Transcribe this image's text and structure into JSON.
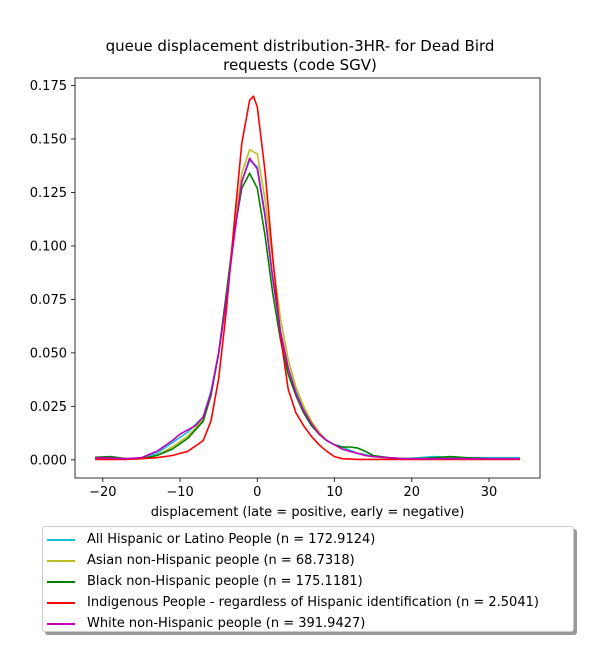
{
  "chart_data": {
    "type": "line",
    "title": "queue displacement distribution-3HR-  for Dead Bird",
    "subtitle": "requests (code SGV)",
    "xlabel": "displacement (late = positive, early = negative)",
    "ylabel": "",
    "xlim": [
      -23.6,
      36.6
    ],
    "ylim": [
      -0.0085,
      0.1785
    ],
    "xticks": [
      -20,
      -10,
      0,
      10,
      20,
      30
    ],
    "yticks": [
      0.0,
      0.025,
      0.05,
      0.075,
      0.1,
      0.125,
      0.15,
      0.175
    ],
    "xtick_labels": [
      "−20",
      "−10",
      "0",
      "10",
      "20",
      "30"
    ],
    "ytick_labels": [
      "0.000",
      "0.025",
      "0.050",
      "0.075",
      "0.100",
      "0.125",
      "0.150",
      "0.175"
    ],
    "legend_position": "below",
    "grid": false,
    "series": [
      {
        "name": "All Hispanic or Latino People (n = 172.9124)",
        "color": "#17becf",
        "points": [
          [
            -21,
            0.001
          ],
          [
            -19,
            0.0012
          ],
          [
            -17,
            0.0005
          ],
          [
            -15,
            0.0008
          ],
          [
            -13,
            0.003
          ],
          [
            -11,
            0.008
          ],
          [
            -9,
            0.013
          ],
          [
            -7,
            0.02
          ],
          [
            -6,
            0.032
          ],
          [
            -5,
            0.05
          ],
          [
            -4,
            0.075
          ],
          [
            -3,
            0.105
          ],
          [
            -2,
            0.13
          ],
          [
            -1,
            0.14
          ],
          [
            0,
            0.137
          ],
          [
            1,
            0.115
          ],
          [
            2,
            0.085
          ],
          [
            3,
            0.06
          ],
          [
            4,
            0.043
          ],
          [
            5,
            0.032
          ],
          [
            6,
            0.024
          ],
          [
            7,
            0.017
          ],
          [
            8,
            0.012
          ],
          [
            9,
            0.009
          ],
          [
            10,
            0.007
          ],
          [
            11,
            0.006
          ],
          [
            12,
            0.0045
          ],
          [
            13,
            0.003
          ],
          [
            14,
            0.0025
          ],
          [
            15,
            0.0015
          ],
          [
            17,
            0.001
          ],
          [
            19,
            0.0005
          ],
          [
            21,
            0.001
          ],
          [
            23,
            0.0015
          ],
          [
            25,
            0.001
          ],
          [
            27,
            0.001
          ],
          [
            30,
            0.001
          ],
          [
            34,
            0.001
          ]
        ]
      },
      {
        "name": "Asian non-Hispanic people (n = 68.7318)",
        "color": "#bcbd22",
        "points": [
          [
            -21,
            0.0005
          ],
          [
            -19,
            0.0005
          ],
          [
            -17,
            0.0003
          ],
          [
            -15,
            0.0005
          ],
          [
            -13,
            0.002
          ],
          [
            -11,
            0.006
          ],
          [
            -9,
            0.011
          ],
          [
            -7,
            0.019
          ],
          [
            -6,
            0.03
          ],
          [
            -5,
            0.05
          ],
          [
            -4,
            0.077
          ],
          [
            -3,
            0.108
          ],
          [
            -2,
            0.134
          ],
          [
            -1,
            0.145
          ],
          [
            0,
            0.143
          ],
          [
            1,
            0.122
          ],
          [
            2,
            0.093
          ],
          [
            3,
            0.066
          ],
          [
            4,
            0.047
          ],
          [
            5,
            0.034
          ],
          [
            6,
            0.025
          ],
          [
            7,
            0.018
          ],
          [
            8,
            0.013
          ],
          [
            9,
            0.009
          ],
          [
            10,
            0.007
          ],
          [
            11,
            0.005
          ],
          [
            12,
            0.004
          ],
          [
            13,
            0.003
          ],
          [
            14,
            0.002
          ],
          [
            15,
            0.0015
          ],
          [
            17,
            0.0008
          ],
          [
            19,
            0.0005
          ],
          [
            21,
            0.0005
          ],
          [
            23,
            0.0005
          ],
          [
            25,
            0.0005
          ],
          [
            30,
            0.0005
          ],
          [
            34,
            0.0005
          ]
        ]
      },
      {
        "name": "Black non-Hispanic people (n = 175.1181)",
        "color": "#008000",
        "points": [
          [
            -21,
            0.0012
          ],
          [
            -19,
            0.0015
          ],
          [
            -17,
            0.0005
          ],
          [
            -15,
            0.0005
          ],
          [
            -13,
            0.002
          ],
          [
            -11,
            0.005
          ],
          [
            -9,
            0.01
          ],
          [
            -7,
            0.018
          ],
          [
            -6,
            0.03
          ],
          [
            -5,
            0.05
          ],
          [
            -4,
            0.078
          ],
          [
            -3,
            0.106
          ],
          [
            -2,
            0.127
          ],
          [
            -1,
            0.134
          ],
          [
            0,
            0.127
          ],
          [
            1,
            0.105
          ],
          [
            2,
            0.078
          ],
          [
            3,
            0.056
          ],
          [
            4,
            0.04
          ],
          [
            5,
            0.03
          ],
          [
            6,
            0.022
          ],
          [
            7,
            0.016
          ],
          [
            8,
            0.012
          ],
          [
            9,
            0.009
          ],
          [
            10,
            0.007
          ],
          [
            11,
            0.006
          ],
          [
            12,
            0.006
          ],
          [
            13,
            0.0055
          ],
          [
            14,
            0.004
          ],
          [
            15,
            0.002
          ],
          [
            17,
            0.001
          ],
          [
            19,
            0.0005
          ],
          [
            21,
            0.0005
          ],
          [
            23,
            0.001
          ],
          [
            25,
            0.0015
          ],
          [
            27,
            0.001
          ],
          [
            30,
            0.0005
          ],
          [
            34,
            0.0003
          ]
        ]
      },
      {
        "name": "Indigenous People - regardless of Hispanic identification (n = 2.5041)",
        "color": "#ff0000",
        "points": [
          [
            -21,
            0.0002
          ],
          [
            -19,
            0.0002
          ],
          [
            -17,
            0.0002
          ],
          [
            -15,
            0.0005
          ],
          [
            -13,
            0.001
          ],
          [
            -11,
            0.002
          ],
          [
            -9,
            0.004
          ],
          [
            -7,
            0.009
          ],
          [
            -6,
            0.018
          ],
          [
            -5,
            0.038
          ],
          [
            -4,
            0.07
          ],
          [
            -3,
            0.11
          ],
          [
            -2,
            0.148
          ],
          [
            -1,
            0.168
          ],
          [
            -0.5,
            0.17
          ],
          [
            0,
            0.165
          ],
          [
            1,
            0.135
          ],
          [
            2,
            0.095
          ],
          [
            3,
            0.058
          ],
          [
            4,
            0.033
          ],
          [
            5,
            0.022
          ],
          [
            6,
            0.016
          ],
          [
            7,
            0.011
          ],
          [
            8,
            0.007
          ],
          [
            9,
            0.004
          ],
          [
            10,
            0.0015
          ],
          [
            11,
            0.0005
          ],
          [
            13,
            0.0002
          ],
          [
            16,
            0.0002
          ],
          [
            20,
            0.0002
          ],
          [
            25,
            0.0002
          ],
          [
            30,
            0.0002
          ],
          [
            34,
            0.0002
          ]
        ]
      },
      {
        "name": "White non-Hispanic people (n = 391.9427)",
        "color": "#bf00bf",
        "points": [
          [
            -21,
            0.001
          ],
          [
            -19,
            0.0008
          ],
          [
            -17,
            0.0005
          ],
          [
            -15,
            0.001
          ],
          [
            -13,
            0.004
          ],
          [
            -11,
            0.009
          ],
          [
            -10,
            0.012
          ],
          [
            -9,
            0.014
          ],
          [
            -8,
            0.016
          ],
          [
            -7,
            0.02
          ],
          [
            -6,
            0.031
          ],
          [
            -5,
            0.05
          ],
          [
            -4,
            0.075
          ],
          [
            -3,
            0.104
          ],
          [
            -2,
            0.13
          ],
          [
            -1,
            0.141
          ],
          [
            0,
            0.136
          ],
          [
            1,
            0.114
          ],
          [
            2,
            0.085
          ],
          [
            3,
            0.06
          ],
          [
            4,
            0.043
          ],
          [
            5,
            0.031
          ],
          [
            6,
            0.023
          ],
          [
            7,
            0.017
          ],
          [
            8,
            0.012
          ],
          [
            9,
            0.009
          ],
          [
            10,
            0.007
          ],
          [
            11,
            0.005
          ],
          [
            12,
            0.004
          ],
          [
            13,
            0.003
          ],
          [
            14,
            0.002
          ],
          [
            15,
            0.0015
          ],
          [
            17,
            0.001
          ],
          [
            19,
            0.0005
          ],
          [
            21,
            0.0005
          ],
          [
            25,
            0.0005
          ],
          [
            30,
            0.0005
          ],
          [
            34,
            0.0005
          ]
        ]
      }
    ]
  }
}
